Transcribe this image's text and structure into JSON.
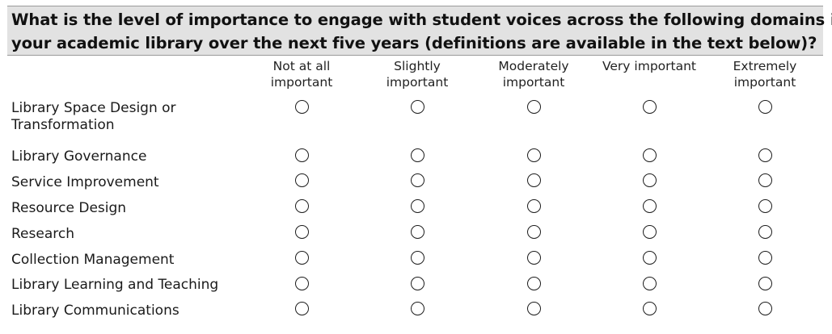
{
  "question": {
    "line1": "What is the level of importance to engage with student voices across the following domains in",
    "line2": "your academic library over the next five years (definitions are available in the text below)?"
  },
  "columns": [
    {
      "line1": "Not at all",
      "line2": "important"
    },
    {
      "line1": "Slightly",
      "line2": "important"
    },
    {
      "line1": "Moderately",
      "line2": "important"
    },
    {
      "line1": "Very important",
      "line2": ""
    },
    {
      "line1": "Extremely",
      "line2": "important"
    }
  ],
  "rows": [
    {
      "line1": "Library Space Design or",
      "line2": "Transformation"
    },
    {
      "line1": "Library Governance",
      "line2": ""
    },
    {
      "line1": "Service Improvement",
      "line2": ""
    },
    {
      "line1": "Resource Design",
      "line2": ""
    },
    {
      "line1": "Research",
      "line2": ""
    },
    {
      "line1": "Collection Management",
      "line2": ""
    },
    {
      "line1": "Library Learning and Teaching",
      "line2": ""
    },
    {
      "line1": "Library Communications",
      "line2": ""
    }
  ]
}
